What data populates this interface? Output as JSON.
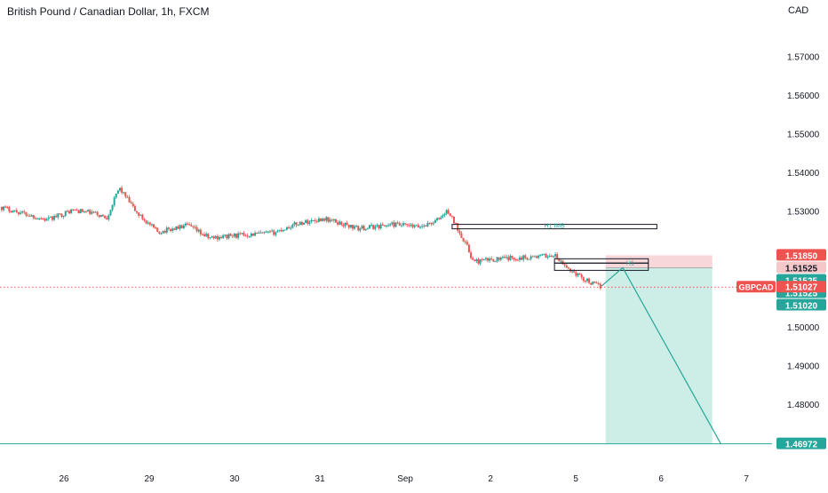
{
  "title": "British Pound / Canadian Dollar, 1h, FXCM",
  "colors": {
    "up": "#26a69a",
    "down": "#ef5350",
    "axis_text": "#131722",
    "current_line": "#ef5350",
    "profit_zone": "#cdeee6",
    "loss_zone": "#f8d7da",
    "symbol_label": "#ef5350"
  },
  "chart_data": {
    "type": "candlestick",
    "symbol": "GBPCAD",
    "interval": "1h",
    "source": "FXCM",
    "currency": "CAD",
    "ylim": [
      1.4655,
      1.5795
    ],
    "y_ticks": [
      {
        "value": 1.57,
        "label": "1.57000"
      },
      {
        "value": 1.56,
        "label": "1.56000"
      },
      {
        "value": 1.55,
        "label": "1.55000"
      },
      {
        "value": 1.54,
        "label": "1.54000"
      },
      {
        "value": 1.53,
        "label": "1.53000"
      },
      {
        "value": 1.5,
        "label": "1.50000"
      },
      {
        "value": 1.49,
        "label": "1.49000"
      },
      {
        "value": 1.48,
        "label": "1.48000"
      }
    ],
    "x_ticks": [
      {
        "day": 0.75,
        "label": "26"
      },
      {
        "day": 1.75,
        "label": "29"
      },
      {
        "day": 2.75,
        "label": "30"
      },
      {
        "day": 3.75,
        "label": "31"
      },
      {
        "day": 4.75,
        "label": "Sep"
      },
      {
        "day": 5.75,
        "label": "2"
      },
      {
        "day": 6.75,
        "label": "5"
      },
      {
        "day": 7.75,
        "label": "6"
      },
      {
        "day": 8.75,
        "label": "7"
      }
    ],
    "price_path": [
      [
        0.0,
        1.531
      ],
      [
        0.3,
        1.5292
      ],
      [
        0.55,
        1.5276
      ],
      [
        0.85,
        1.5302
      ],
      [
        1.1,
        1.5294
      ],
      [
        1.25,
        1.5282
      ],
      [
        1.4,
        1.536
      ],
      [
        1.6,
        1.5295
      ],
      [
        1.85,
        1.5245
      ],
      [
        2.2,
        1.5262
      ],
      [
        2.45,
        1.523
      ],
      [
        2.8,
        1.5237
      ],
      [
        3.2,
        1.5243
      ],
      [
        3.5,
        1.5268
      ],
      [
        3.8,
        1.528
      ],
      [
        4.2,
        1.5254
      ],
      [
        4.6,
        1.5265
      ],
      [
        4.9,
        1.5258
      ],
      [
        5.1,
        1.5272
      ],
      [
        5.25,
        1.53
      ],
      [
        5.45,
        1.522
      ],
      [
        5.55,
        1.5168
      ],
      [
        5.8,
        1.5175
      ],
      [
        6.2,
        1.518
      ],
      [
        6.5,
        1.5185
      ],
      [
        6.6,
        1.516
      ],
      [
        6.8,
        1.513
      ],
      [
        6.95,
        1.5111
      ],
      [
        7.05,
        1.5103
      ]
    ],
    "current_price": {
      "value": 1.51027,
      "label": "1.51027",
      "symbol": "GBPCAD"
    },
    "price_labels": [
      {
        "value": 1.5185,
        "label": "1.51850",
        "kind": "stop"
      },
      {
        "value": 1.51525,
        "label": "1.51525",
        "kind": "pale"
      },
      {
        "value": 1.51525,
        "label": "1.51525",
        "kind": "entry"
      },
      {
        "value": 1.51525,
        "label": "1.51525",
        "kind": "entry"
      },
      {
        "value": 1.5102,
        "label": "1.51020",
        "kind": "entry"
      },
      {
        "value": 1.46972,
        "label": "1.46972",
        "kind": "target"
      }
    ],
    "position": {
      "direction": "short",
      "start_day": 7.1,
      "end_day": 8.35,
      "entry": 1.51525,
      "stop": 1.5185,
      "target": 1.46972
    },
    "zones": [
      {
        "label": "H1 IMB",
        "x0": 5.3,
        "x1": 7.7,
        "y_top": 1.5265,
        "y_bottom": 1.5258
      },
      {
        "label": "",
        "x0": 6.5,
        "x1": 7.6,
        "y_top": 1.5176,
        "y_bottom": 1.5167
      },
      {
        "label": "",
        "x0": 6.5,
        "x1": 7.6,
        "y_top": 1.5165,
        "y_bottom": 1.5146
      }
    ],
    "annotations": [
      {
        "text": "H1",
        "day": 7.3,
        "value": 1.5155
      }
    ],
    "projection": [
      {
        "day": 7.05,
        "value": 1.5105
      },
      {
        "day": 7.3,
        "value": 1.5153
      },
      {
        "day": 8.45,
        "value": 1.4697
      }
    ]
  }
}
